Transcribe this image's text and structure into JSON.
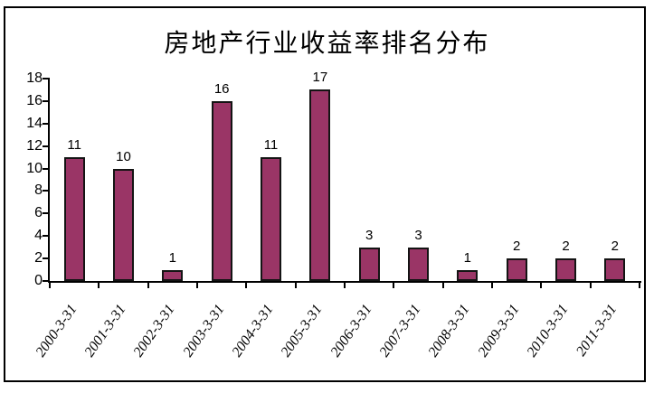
{
  "window": {
    "background_color": "#ffffff",
    "frame_border_color": "#000000"
  },
  "chart_data": {
    "type": "bar",
    "title": "房地产行业收益率排名分布",
    "categories": [
      "2000-3-31",
      "2001-3-31",
      "2002-3-31",
      "2003-3-31",
      "2004-3-31",
      "2005-3-31",
      "2006-3-31",
      "2007-3-31",
      "2008-3-31",
      "2009-3-31",
      "2010-3-31",
      "2011-3-31"
    ],
    "values": [
      11,
      10,
      1,
      16,
      11,
      17,
      3,
      3,
      1,
      2,
      2,
      2
    ],
    "data_labels": [
      11,
      10,
      1,
      16,
      11,
      17,
      3,
      3,
      1,
      2,
      2,
      2
    ],
    "xlabel": "",
    "ylabel": "",
    "ylim": [
      0,
      18
    ],
    "yticks": [
      0,
      2,
      4,
      6,
      8,
      10,
      12,
      14,
      16,
      18
    ],
    "grid": false,
    "legend": "none",
    "bar_color": "#9A3566",
    "bar_border_color": "#141414",
    "axis_color": "#000000",
    "text_color": "#000000"
  }
}
